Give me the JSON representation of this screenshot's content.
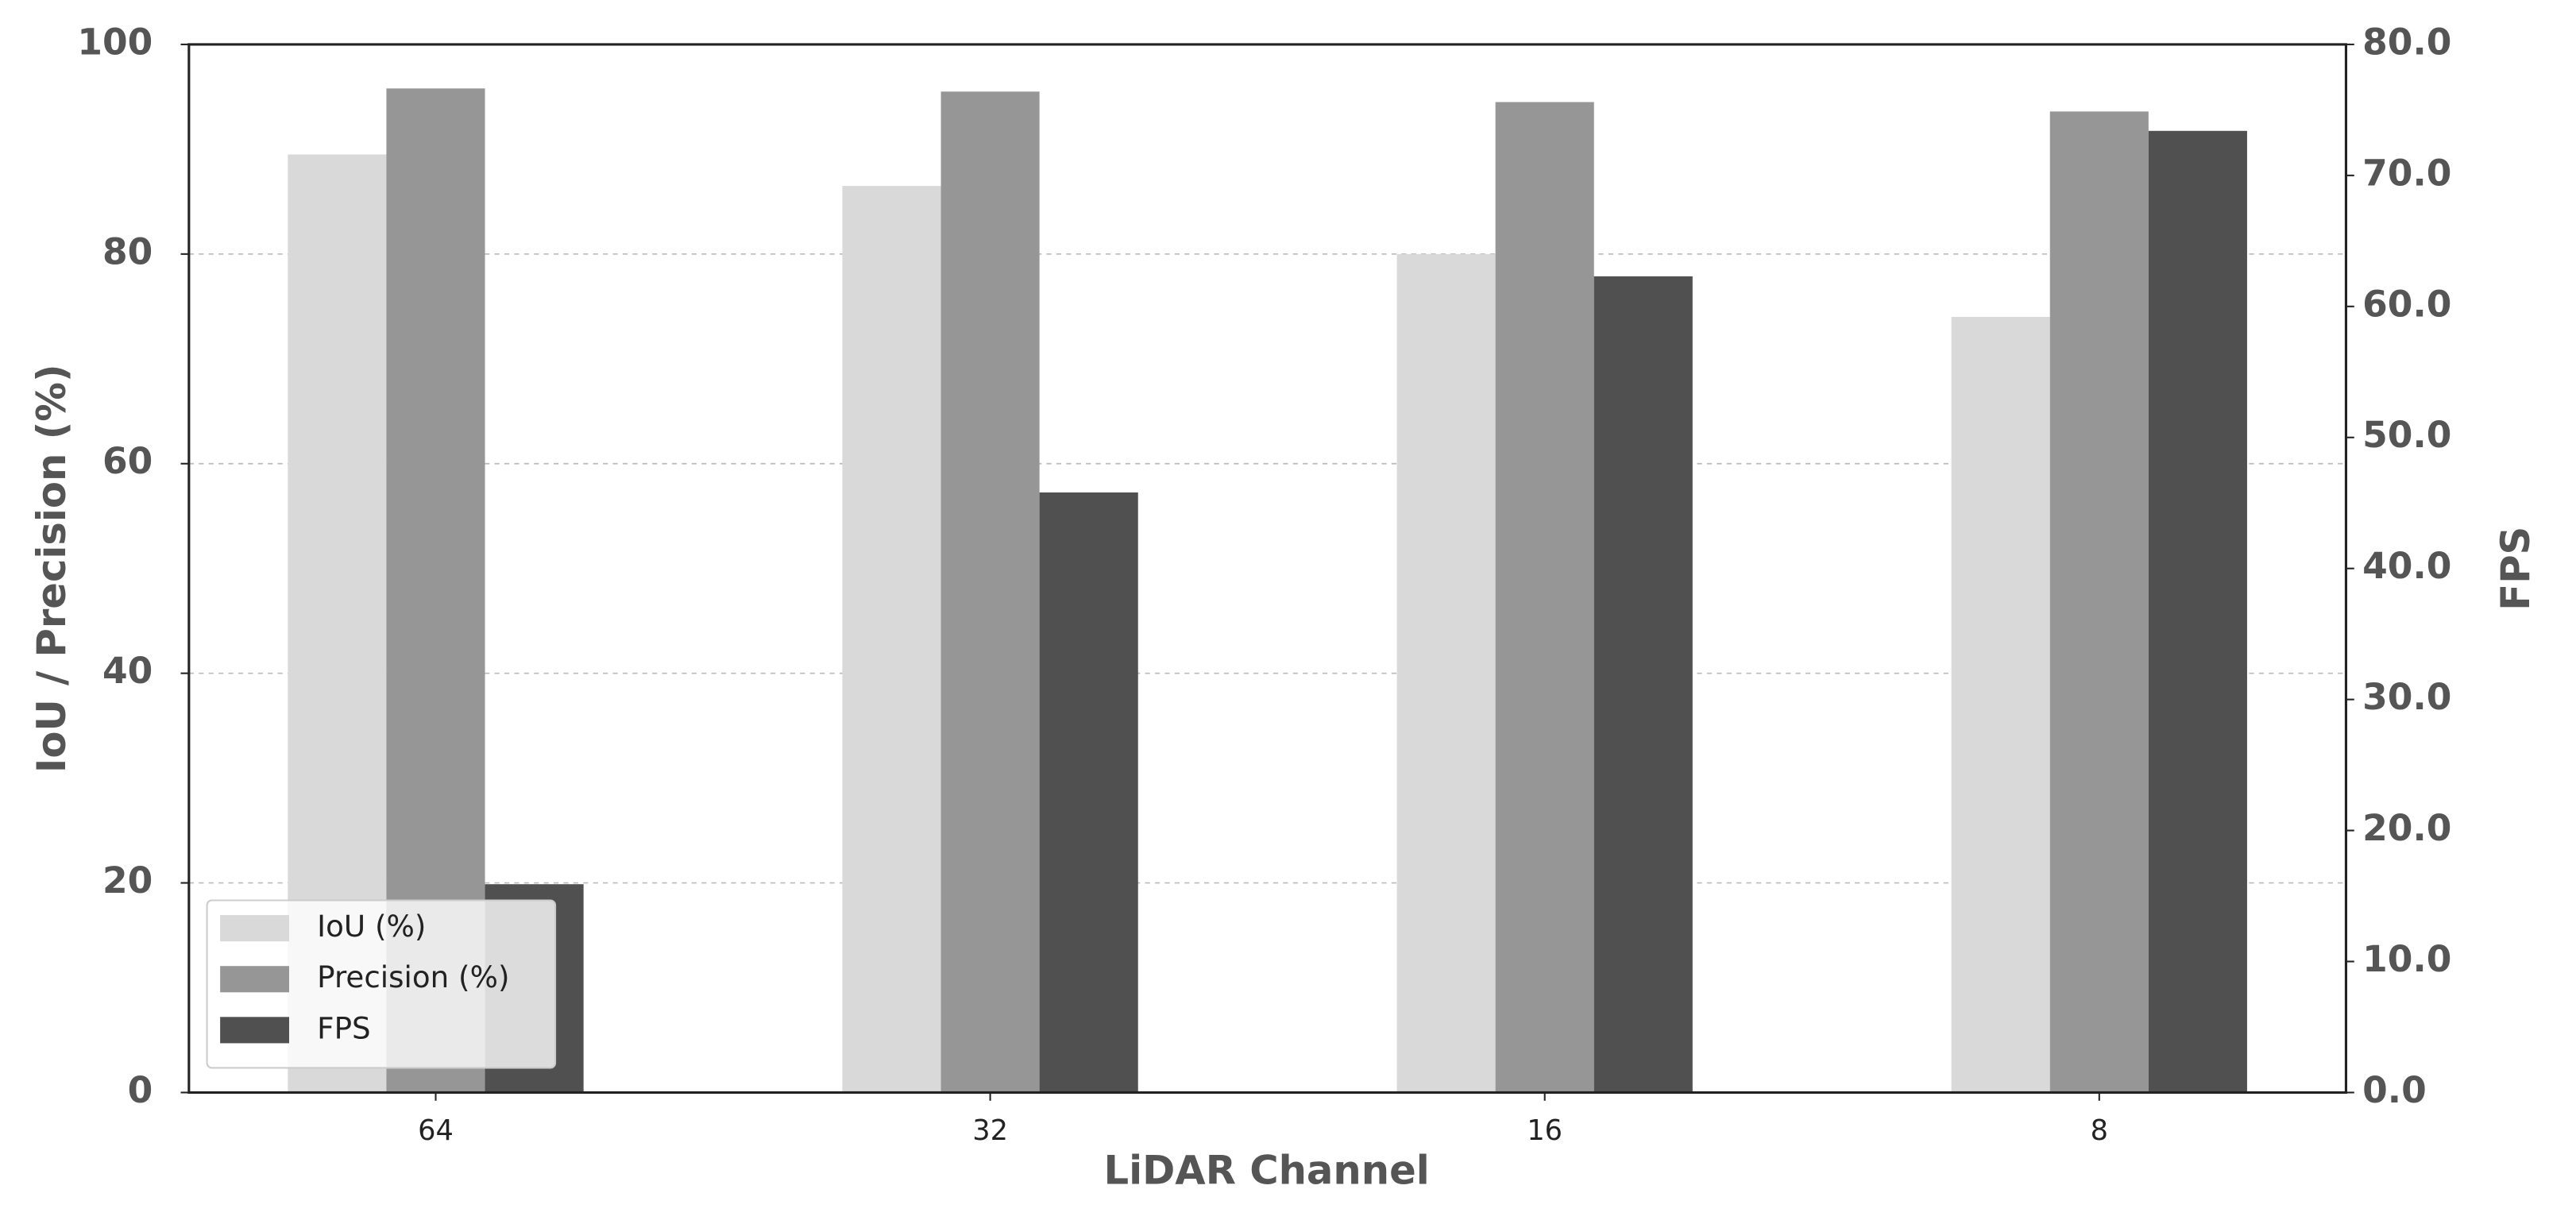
{
  "chart_data": {
    "type": "bar",
    "x_label": "LiDAR Channel",
    "y_label": "IoU / Precision (%)",
    "y2_label": "FPS",
    "categories": [
      "64",
      "32",
      "16",
      "8"
    ],
    "series": [
      {
        "name": "IoU (%)",
        "color": "#d9d9d9",
        "values": [
          89.5,
          86.5,
          80,
          74
        ]
      },
      {
        "name": "Precision (%)",
        "color": "#969696",
        "values": [
          95.8,
          95.5,
          94.5,
          93.6
        ]
      },
      {
        "name": "FPS",
        "color": "#505050",
        "axis": "y2",
        "values": [
          15.9,
          45.8,
          62.3,
          73.4
        ]
      }
    ],
    "ylim": [
      0,
      100
    ],
    "yticks": [
      0,
      20,
      40,
      60,
      80,
      100
    ],
    "y2lim": [
      0,
      80
    ],
    "y2ticks": [
      {
        "value": 0,
        "label": "0.0"
      },
      {
        "value": 10,
        "label": "10.0"
      },
      {
        "value": 20,
        "label": "20.0"
      },
      {
        "value": 30,
        "label": "30.0"
      },
      {
        "value": 40,
        "label": "40.0"
      },
      {
        "value": 50,
        "label": "50.0"
      },
      {
        "value": 60,
        "label": "60.0"
      },
      {
        "value": 70,
        "label": "70.0"
      },
      {
        "value": 80,
        "label": "80.0"
      }
    ],
    "grid": true,
    "legend": "lower left"
  }
}
